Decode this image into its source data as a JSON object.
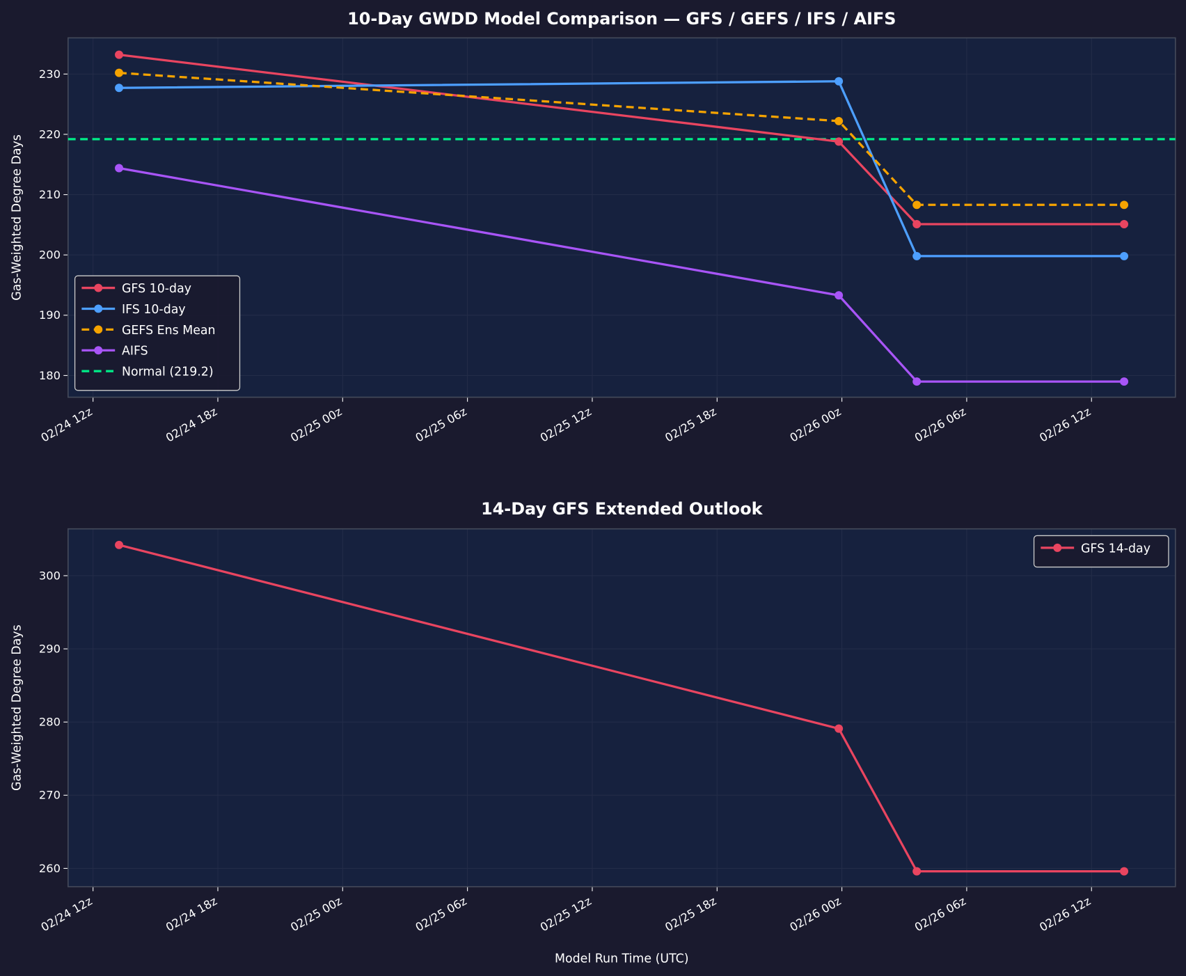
{
  "colors": {
    "background": "#1a1a2e",
    "plot_background": "#16213e",
    "spine": "#444a5a",
    "grid": "#232c48",
    "text": "#ffffff"
  },
  "chart_data": [
    {
      "type": "line",
      "title": "10-Day GWDD Model Comparison — GFS / GEFS / IFS / AIFS",
      "xlabel": "",
      "ylabel": "Gas-Weighted Degree Days",
      "x_ticks": [
        "02/24 12z",
        "02/24 18z",
        "02/25 00z",
        "02/25 06z",
        "02/25 12z",
        "02/25 18z",
        "02/26 00z",
        "02/26 06z",
        "02/26 12z"
      ],
      "y_ticks": [
        180,
        190,
        200,
        210,
        220,
        230
      ],
      "xlim": [
        "02/24 10:48z",
        "02/26 16:02z"
      ],
      "ylim": [
        176.4,
        236.0
      ],
      "grid": true,
      "legend_position": "lower-left",
      "x": [
        "02/24 13:15z",
        "02/25 23:51z",
        "02/26 03:36z",
        "02/26 13:34z"
      ],
      "series": [
        {
          "name": "GFS 10-day",
          "color": "#e94560",
          "dash": false,
          "markers": true,
          "values": [
            233.2,
            218.8,
            205.1,
            205.1
          ]
        },
        {
          "name": "IFS 10-day",
          "color": "#4d9fff",
          "dash": false,
          "markers": true,
          "values": [
            227.7,
            228.8,
            199.8,
            199.8
          ]
        },
        {
          "name": "GEFS Ens Mean",
          "color": "#f5a300",
          "dash": true,
          "markers": true,
          "values": [
            230.2,
            222.2,
            208.3,
            208.3
          ]
        },
        {
          "name": "AIFS",
          "color": "#a855f7",
          "dash": false,
          "markers": true,
          "values": [
            214.4,
            193.3,
            179.0,
            179.0
          ]
        }
      ],
      "reference_lines": [
        {
          "name": "Normal (219.2)",
          "value": 219.2,
          "color": "#00ee88",
          "dash": true
        }
      ]
    },
    {
      "type": "line",
      "title": "14-Day GFS Extended Outlook",
      "xlabel": "Model Run Time (UTC)",
      "ylabel": "Gas-Weighted Degree Days",
      "x_ticks": [
        "02/24 12z",
        "02/24 18z",
        "02/25 00z",
        "02/25 06z",
        "02/25 12z",
        "02/25 18z",
        "02/26 00z",
        "02/26 06z",
        "02/26 12z"
      ],
      "y_ticks": [
        260,
        270,
        280,
        290,
        300
      ],
      "xlim": [
        "02/24 10:48z",
        "02/26 16:02z"
      ],
      "ylim": [
        257.5,
        306.4
      ],
      "grid": true,
      "legend_position": "upper-right",
      "x": [
        "02/24 13:15z",
        "02/25 23:51z",
        "02/26 03:36z",
        "02/26 13:34z"
      ],
      "series": [
        {
          "name": "GFS 14-day",
          "color": "#e94560",
          "dash": false,
          "markers": true,
          "values": [
            304.2,
            279.1,
            259.6,
            259.6
          ]
        }
      ],
      "reference_lines": []
    }
  ]
}
